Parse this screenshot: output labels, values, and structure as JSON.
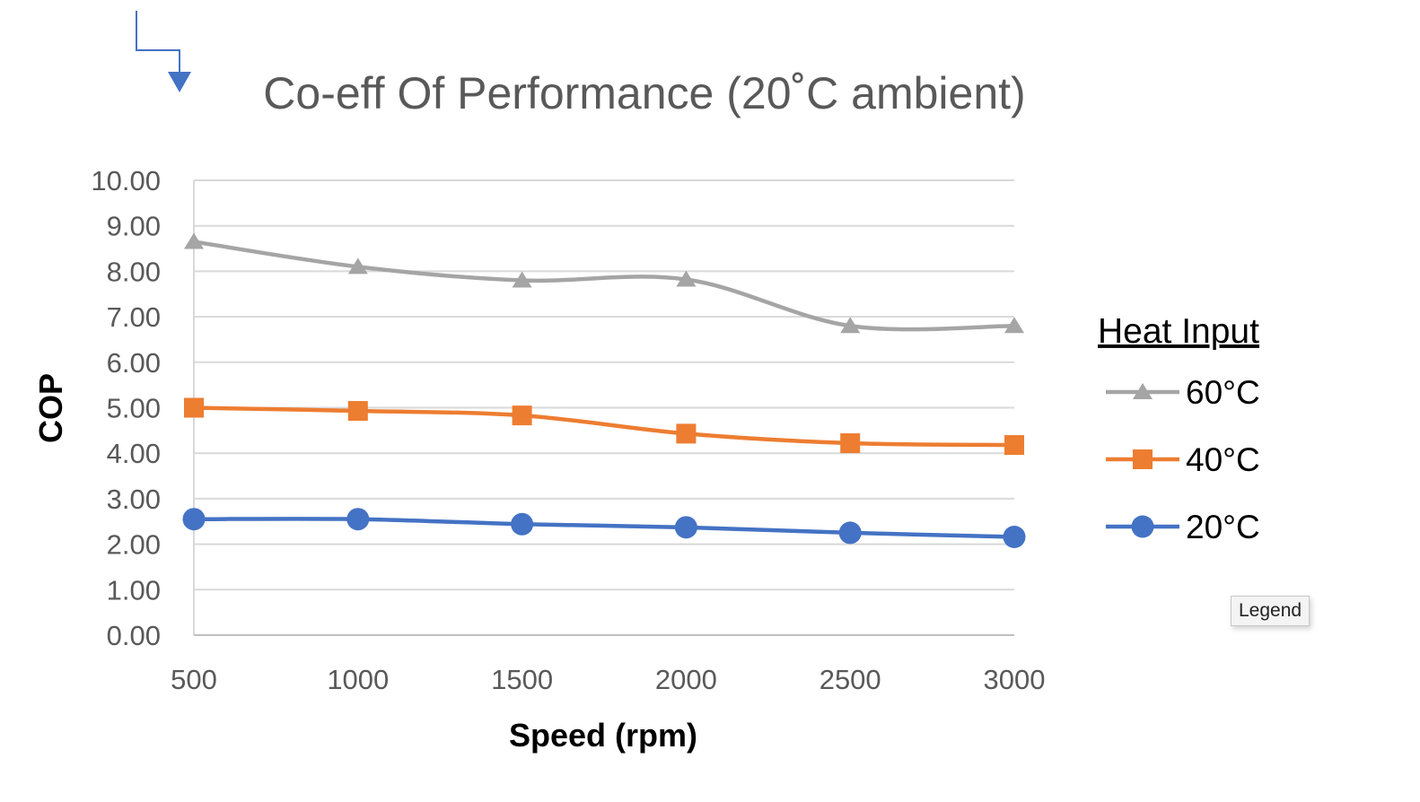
{
  "chart_data": {
    "type": "line",
    "title": "Co-eff Of Performance (20˚C ambient)",
    "xlabel": "Speed (rpm)",
    "ylabel": "COP",
    "x": [
      500,
      1000,
      1500,
      2000,
      2500,
      3000
    ],
    "x_tick_labels": [
      "500",
      "1000",
      "1500",
      "2000",
      "2500",
      "3000"
    ],
    "ylim": [
      0,
      10
    ],
    "y_tick_labels": [
      "0.00",
      "1.00",
      "2.00",
      "3.00",
      "4.00",
      "5.00",
      "6.00",
      "7.00",
      "8.00",
      "9.00",
      "10.00"
    ],
    "grid": true,
    "smoothed": true,
    "legend": {
      "title": "Heat Input",
      "placement": "right"
    },
    "series": [
      {
        "name": "60°C",
        "color": "#a5a5a5",
        "marker": "triangle",
        "values": [
          8.65,
          8.1,
          7.8,
          7.82,
          6.8,
          6.8
        ]
      },
      {
        "name": "40°C",
        "color": "#ed7d31",
        "marker": "square",
        "values": [
          5.0,
          4.93,
          4.83,
          4.43,
          4.22,
          4.18
        ]
      },
      {
        "name": "20°C",
        "color": "#4472c4",
        "marker": "circle",
        "values": [
          2.55,
          2.55,
          2.44,
          2.37,
          2.25,
          2.16
        ]
      }
    ]
  },
  "tooltip": {
    "text": "Legend"
  },
  "cursor_icon": "elbow-arrow-icon"
}
